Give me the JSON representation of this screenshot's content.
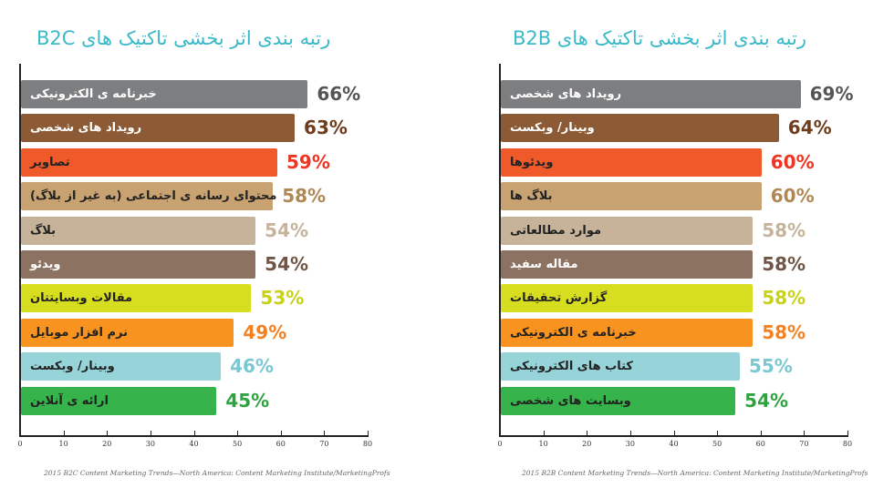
{
  "chart_data": [
    {
      "type": "bar",
      "orientation": "horizontal",
      "title": "رتبه بندی اثر بخشی تاکتیک های B2C",
      "categories": [
        "خبرنامه ی الکترونیکی",
        "رویداد های شخصی",
        "تصاویر",
        "محتوای رسانه ی اجتماعی (به غیر از بلاگ)",
        "بلاگ",
        "ویدئو",
        "مقالات وبسایتتان",
        "نرم افزار موبایل",
        "وبینار/ وبکست",
        "ارائه ی آنلاین"
      ],
      "values": [
        66,
        63,
        59,
        58,
        54,
        54,
        53,
        49,
        46,
        45
      ],
      "value_labels": [
        "66%",
        "63%",
        "59%",
        "58%",
        "54%",
        "54%",
        "53%",
        "49%",
        "46%",
        "45%"
      ],
      "bar_colors": [
        "#7d7e80",
        "#8c5a34",
        "#f0592a",
        "#c8a271",
        "#c6b39a",
        "#8c7260",
        "#d7de1f",
        "#f7931e",
        "#96d4da",
        "#36b34a"
      ],
      "label_colors": [
        "#555555",
        "#6d3d1d",
        "#ee3523",
        "#b08856",
        "#c5b49b",
        "#6f5646",
        "#c8d21a",
        "#f38121",
        "#79c8d2",
        "#2ea33f"
      ],
      "text_colors": [
        "#ffffff",
        "#ffffff",
        "#222222",
        "#222222",
        "#222222",
        "#ffffff",
        "#222222",
        "#222222",
        "#222222",
        "#222222"
      ],
      "xlim": [
        0,
        80
      ],
      "xticks": [
        "0",
        "10",
        "20",
        "30",
        "40",
        "50",
        "60",
        "70",
        "80"
      ],
      "source": "2015 B2C Content Marketing Trends—North America: Content Marketing Institute/MarketingProfs"
    },
    {
      "type": "bar",
      "orientation": "horizontal",
      "title": "رتبه بندی اثر بخشی تاکتیک های B2B",
      "categories": [
        "رویداد های شخصی",
        "وبینار/ وبکست",
        "ویدئوها",
        "بلاگ ها",
        "موارد مطالعاتی",
        "مقاله سفید",
        "گزارش تحقیقات",
        "خبرنامه ی الکترونیکی",
        "کتاب های الکترونیکی",
        "وبسایت های شخصی"
      ],
      "values": [
        69,
        64,
        60,
        60,
        58,
        58,
        58,
        58,
        55,
        54
      ],
      "value_labels": [
        "69%",
        "64%",
        "60%",
        "60%",
        "58%",
        "58%",
        "58%",
        "58%",
        "55%",
        "54%"
      ],
      "bar_colors": [
        "#7d7e80",
        "#8c5a34",
        "#f0592a",
        "#c8a271",
        "#c6b39a",
        "#8c7260",
        "#d7de1f",
        "#f7931e",
        "#96d4da",
        "#36b34a"
      ],
      "label_colors": [
        "#555555",
        "#6d3d1d",
        "#ee3523",
        "#b08856",
        "#c5b49b",
        "#6f5646",
        "#c8d21a",
        "#f38121",
        "#79c8d2",
        "#2ea33f"
      ],
      "text_colors": [
        "#ffffff",
        "#ffffff",
        "#222222",
        "#222222",
        "#222222",
        "#ffffff",
        "#222222",
        "#222222",
        "#222222",
        "#222222"
      ],
      "xlim": [
        0,
        80
      ],
      "xticks": [
        "0",
        "10",
        "20",
        "30",
        "40",
        "50",
        "60",
        "70",
        "80"
      ],
      "source": "2015 B2B Content Marketing Trends—North America: Content Marketing Institute/MarketingProfs"
    }
  ]
}
